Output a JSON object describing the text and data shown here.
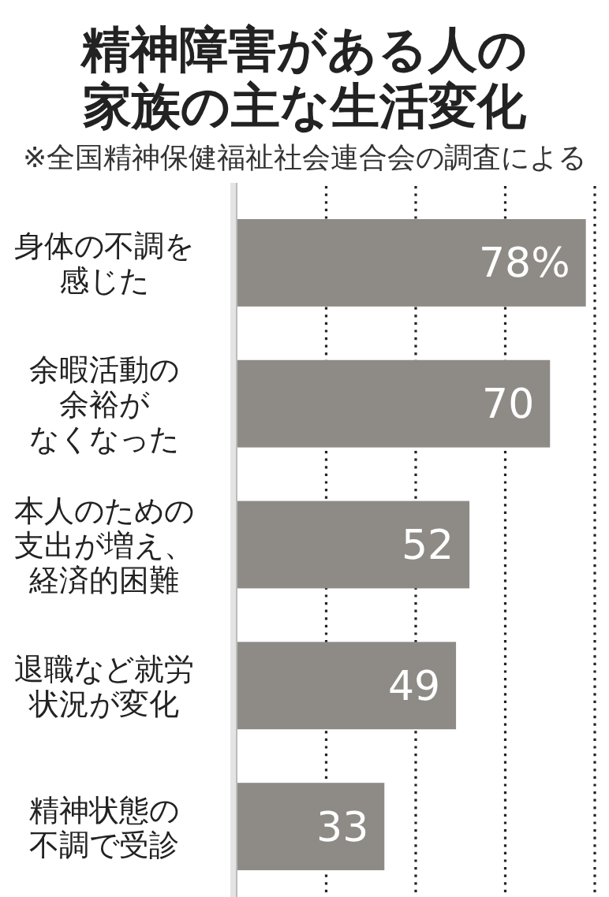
{
  "chart_data": {
    "type": "bar",
    "orientation": "horizontal",
    "title": "精神障害がある人の家族の主な生活変化",
    "subtitle": "※全国精神保健福祉社会連合会の調査による",
    "categories": [
      "身体の不調を感じた",
      "余暇活動の余裕がなくなった",
      "本人のための支出が増え、経済的困難",
      "退職など就労状況が変化",
      "精神状態の不調で受診"
    ],
    "values": [
      78,
      70,
      52,
      49,
      33
    ],
    "value_labels": [
      "78%",
      "70",
      "52",
      "49",
      "33"
    ],
    "color": "#8e8b87",
    "xlim": [
      0,
      80
    ],
    "xticks": [
      {
        "value": 20,
        "label": null
      },
      {
        "value": 40,
        "label": null
      },
      {
        "value": 60,
        "label": null
      },
      {
        "value": 80,
        "label": null
      }
    ],
    "grid": "x",
    "tick_labels": "y"
  }
}
